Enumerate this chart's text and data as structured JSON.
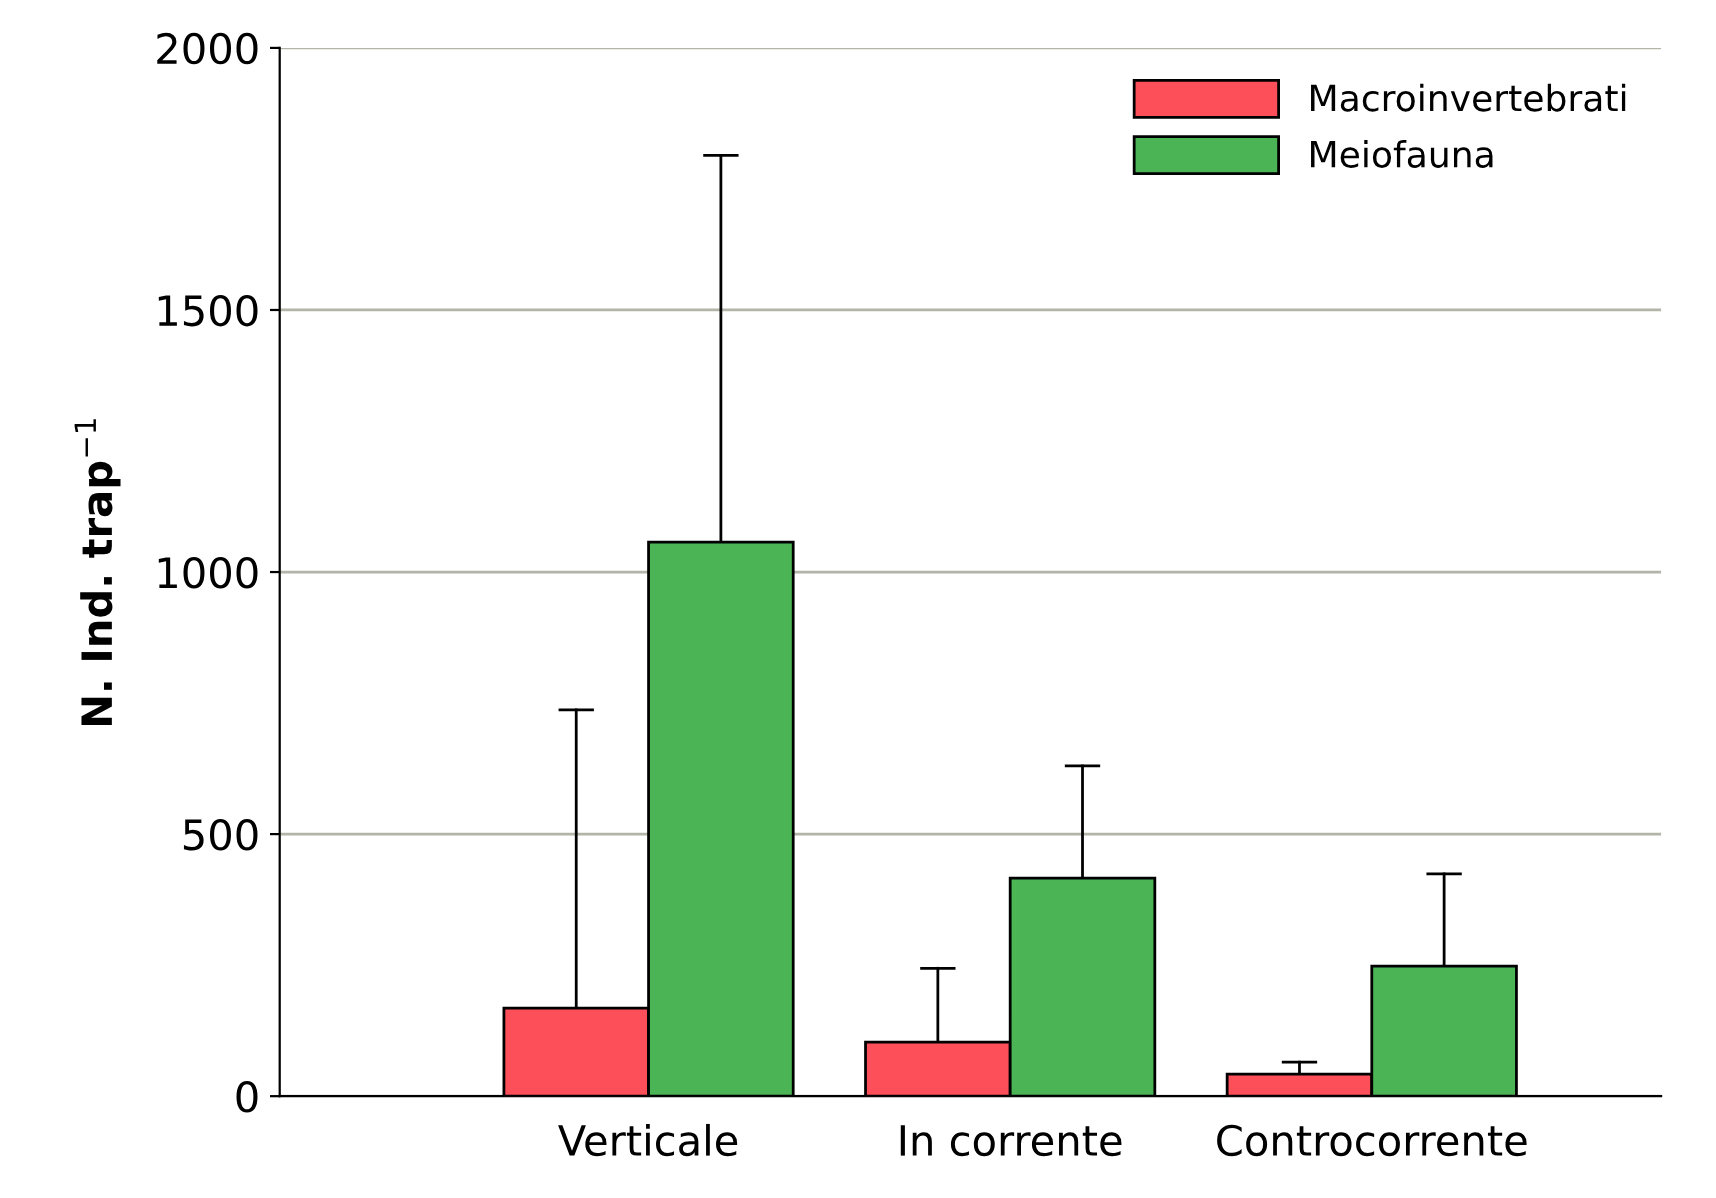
{
  "chart_data": {
    "type": "bar",
    "ylabel": "N. Ind. trap$^{−1}$",
    "categories": [
      "Verticale",
      "In corrente",
      "Controcorrente"
    ],
    "series": [
      {
        "name": "Macroinvertebrati",
        "color": "#fc4f5a",
        "values": [
          168,
          103,
          42
        ],
        "errors": [
          [
            168,
            737
          ],
          [
            103,
            244
          ],
          [
            42,
            65
          ]
        ]
      },
      {
        "name": "Meiofauna",
        "color": "#4bb556",
        "values": [
          1057,
          416,
          248
        ],
        "errors": [
          [
            1057,
            1795
          ],
          [
            416,
            630
          ],
          [
            248,
            424
          ]
        ]
      }
    ],
    "ylim": [
      0,
      2000
    ],
    "yticks": [
      0,
      500,
      1000,
      1500,
      2000
    ],
    "grid": "y",
    "legend": "top right"
  }
}
